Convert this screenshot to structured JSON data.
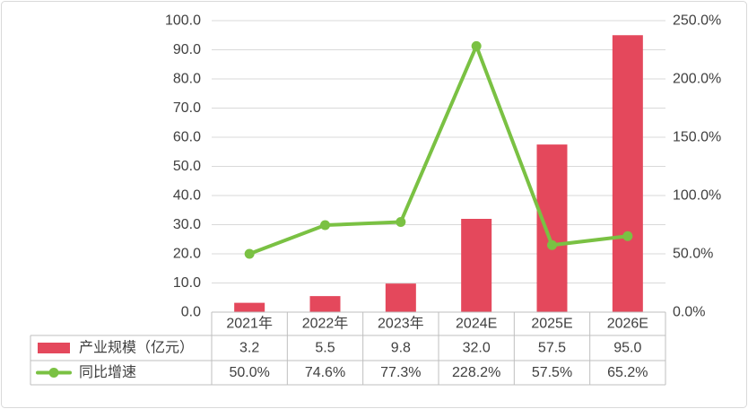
{
  "chart_data": {
    "type": "bar",
    "categories": [
      "2021年",
      "2022年",
      "2023年",
      "2024E",
      "2025E",
      "2026E"
    ],
    "series": [
      {
        "name": "产业规模（亿元）",
        "chart_type": "bar",
        "axis": "left",
        "color": "#E4485C",
        "values": [
          3.2,
          5.5,
          9.8,
          32.0,
          57.5,
          95.0
        ],
        "labels": [
          "3.2",
          "5.5",
          "9.8",
          "32.0",
          "57.5",
          "95.0"
        ]
      },
      {
        "name": "同比增速",
        "chart_type": "line",
        "axis": "right",
        "color": "#7AC143",
        "values": [
          50.0,
          74.6,
          77.3,
          228.2,
          57.5,
          65.2
        ],
        "labels": [
          "50.0%",
          "74.6%",
          "77.3%",
          "228.2%",
          "57.5%",
          "65.2%"
        ]
      }
    ],
    "ylim": [
      0,
      100
    ],
    "y_ticks": [
      "0.0",
      "10.0",
      "20.0",
      "30.0",
      "40.0",
      "50.0",
      "60.0",
      "70.0",
      "80.0",
      "90.0",
      "100.0"
    ],
    "y2lim": [
      0,
      250
    ],
    "y2_ticks": [
      "0.0%",
      "50.0%",
      "100.0%",
      "150.0%",
      "200.0%",
      "250.0%"
    ],
    "grid": true,
    "legend": "bottom-data-table"
  }
}
